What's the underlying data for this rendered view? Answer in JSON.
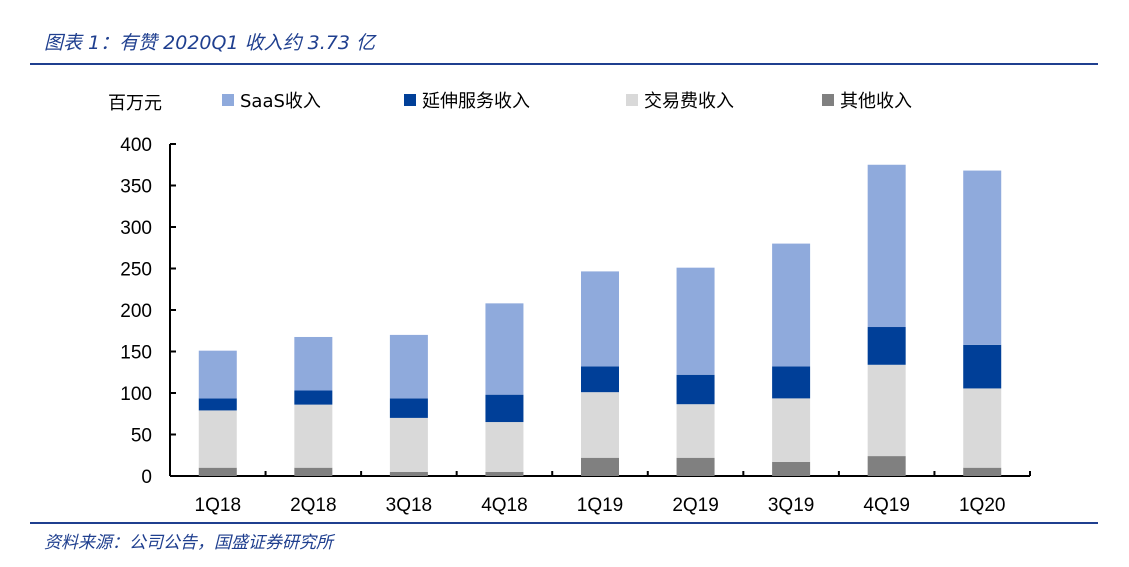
{
  "title": "图表 1：有赞 2020Q1 收入约 3.73 亿",
  "source": "资料来源：公司公告，国盛证券研究所",
  "chart_data": {
    "type": "bar",
    "stacked": true,
    "ylabel": "百万元",
    "ylim": [
      0,
      400
    ],
    "yticks": [
      0,
      50,
      100,
      150,
      200,
      250,
      300,
      350,
      400
    ],
    "categories": [
      "1Q18",
      "2Q18",
      "3Q18",
      "4Q18",
      "1Q19",
      "2Q19",
      "3Q19",
      "4Q19",
      "1Q20"
    ],
    "legend_position": "top",
    "series": [
      {
        "name": "其他收入",
        "color": "#808080",
        "values": [
          10,
          10,
          5,
          5,
          22,
          22,
          17,
          24,
          10
        ]
      },
      {
        "name": "交易费收入",
        "color": "#d9d9d9",
        "values": [
          69,
          76,
          65,
          60,
          79,
          64.5,
          76.5,
          110,
          95.5
        ]
      },
      {
        "name": "延伸服务收入",
        "color": "#003f98",
        "values": [
          14.5,
          17,
          23.5,
          33,
          31,
          35.5,
          38.5,
          45.5,
          52.5
        ]
      },
      {
        "name": "SaaS收入",
        "color": "#8faadc",
        "values": [
          57.5,
          64.5,
          76.5,
          110,
          114.5,
          129,
          148,
          195.5,
          210
        ]
      }
    ],
    "legend_order": [
      3,
      2,
      1,
      0
    ]
  }
}
